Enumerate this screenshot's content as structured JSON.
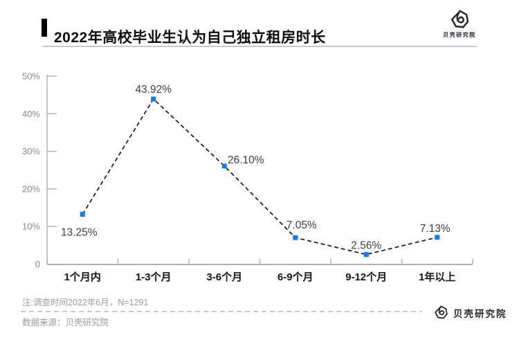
{
  "header": {
    "title": "2022年高校毕业生认为自己独立租房时长",
    "logo_text": "贝壳研究院"
  },
  "chart_data": {
    "type": "line",
    "title": "2022年高校毕业生认为自己独立租房时长",
    "categories": [
      "1个月内",
      "1-3个月",
      "3-6个月",
      "6-9个月",
      "9-12个月",
      "1年以上"
    ],
    "values": [
      13.25,
      43.92,
      26.1,
      7.05,
      2.56,
      7.13
    ],
    "point_labels": [
      "13.25%",
      "43.92%",
      "26.10%",
      "7.05%",
      "2.56%",
      "7.13%"
    ],
    "xlabel": "",
    "ylabel": "",
    "ylim": [
      0,
      50
    ],
    "ytick_labels": [
      "50%",
      "40%",
      "30%",
      "20%",
      "10%",
      "0"
    ],
    "ytick_values": [
      50,
      40,
      30,
      20,
      10,
      0
    ],
    "grid": false,
    "legend": false,
    "line_style": "dashed",
    "marker": "square",
    "marker_color": "#1779F2",
    "line_color": "#1a1a1a",
    "axis_color": "#b3b3b3",
    "tick_label_color": "#8a8a8a",
    "point_label_color": "#3d3d3d",
    "category_label_color": "#141414"
  },
  "footer": {
    "note": "注:调查时间2022年6月，N=1291",
    "source": "数据来源：贝壳研究院",
    "logo_text": "贝壳研究院"
  }
}
